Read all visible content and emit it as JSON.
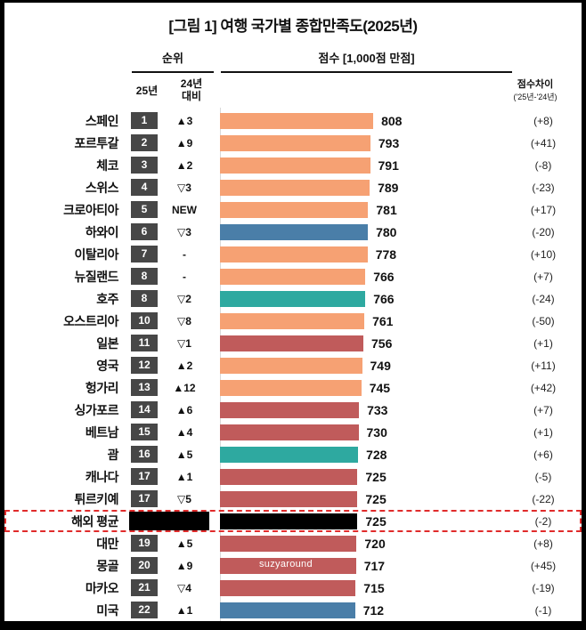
{
  "title": "[그림 1] 여행 국가별 종합만족도(2025년)",
  "header": {
    "rank_label": "순위",
    "score_label": "점수 [1,000점 만점]",
    "col_2025": "25년",
    "col_vs_line1": "24년",
    "col_vs_line2": "대비",
    "diff_label": "점수차이",
    "diff_sublabel": "('25년-'24년)"
  },
  "watermark": "suzyaround",
  "colors": {
    "orange": "#F6A173",
    "blue": "#4A7EA8",
    "teal": "#2EA9A0",
    "red": "#C05B5B",
    "black": "#000000",
    "badge": "#474747",
    "highlight_border": "#E02B2B"
  },
  "chart_data": {
    "type": "bar",
    "title": "여행 국가별 종합만족도(2025년)",
    "unit": "1,000점 만점",
    "x_max": 1000,
    "rows": [
      {
        "country": "스페인",
        "rank": "1",
        "change": "▲3",
        "score": 808,
        "diff": "(+8)",
        "color": "orange"
      },
      {
        "country": "포르투갈",
        "rank": "2",
        "change": "▲9",
        "score": 793,
        "diff": "(+41)",
        "color": "orange"
      },
      {
        "country": "체코",
        "rank": "3",
        "change": "▲2",
        "score": 791,
        "diff": "(-8)",
        "color": "orange"
      },
      {
        "country": "스위스",
        "rank": "4",
        "change": "▽3",
        "score": 789,
        "diff": "(-23)",
        "color": "orange"
      },
      {
        "country": "크로아티아",
        "rank": "5",
        "change": "NEW",
        "score": 781,
        "diff": "(+17)",
        "color": "orange"
      },
      {
        "country": "하와이",
        "rank": "6",
        "change": "▽3",
        "score": 780,
        "diff": "(-20)",
        "color": "blue"
      },
      {
        "country": "이탈리아",
        "rank": "7",
        "change": "-",
        "score": 778,
        "diff": "(+10)",
        "color": "orange"
      },
      {
        "country": "뉴질랜드",
        "rank": "8",
        "change": "-",
        "score": 766,
        "diff": "(+7)",
        "color": "orange"
      },
      {
        "country": "호주",
        "rank": "8",
        "change": "▽2",
        "score": 766,
        "diff": "(-24)",
        "color": "teal"
      },
      {
        "country": "오스트리아",
        "rank": "10",
        "change": "▽8",
        "score": 761,
        "diff": "(-50)",
        "color": "orange"
      },
      {
        "country": "일본",
        "rank": "11",
        "change": "▽1",
        "score": 756,
        "diff": "(+1)",
        "color": "red"
      },
      {
        "country": "영국",
        "rank": "12",
        "change": "▲2",
        "score": 749,
        "diff": "(+11)",
        "color": "orange"
      },
      {
        "country": "헝가리",
        "rank": "13",
        "change": "▲12",
        "score": 745,
        "diff": "(+42)",
        "color": "orange"
      },
      {
        "country": "싱가포르",
        "rank": "14",
        "change": "▲6",
        "score": 733,
        "diff": "(+7)",
        "color": "red"
      },
      {
        "country": "베트남",
        "rank": "15",
        "change": "▲4",
        "score": 730,
        "diff": "(+1)",
        "color": "red"
      },
      {
        "country": "괌",
        "rank": "16",
        "change": "▲5",
        "score": 728,
        "diff": "(+6)",
        "color": "teal"
      },
      {
        "country": "캐나다",
        "rank": "17",
        "change": "▲1",
        "score": 725,
        "diff": "(-5)",
        "color": "red"
      },
      {
        "country": "튀르키예",
        "rank": "17",
        "change": "▽5",
        "score": 725,
        "diff": "(-22)",
        "color": "red"
      },
      {
        "country": "해외 평균",
        "rank": "",
        "change": "",
        "score": 725,
        "diff": "(-2)",
        "color": "black",
        "avg": true
      },
      {
        "country": "대만",
        "rank": "19",
        "change": "▲5",
        "score": 720,
        "diff": "(+8)",
        "color": "red"
      },
      {
        "country": "몽골",
        "rank": "20",
        "change": "▲9",
        "score": 717,
        "diff": "(+45)",
        "color": "red",
        "watermark": true
      },
      {
        "country": "마카오",
        "rank": "21",
        "change": "▽4",
        "score": 715,
        "diff": "(-19)",
        "color": "red"
      },
      {
        "country": "미국",
        "rank": "22",
        "change": "▲1",
        "score": 712,
        "diff": "(-1)",
        "color": "blue"
      }
    ]
  }
}
